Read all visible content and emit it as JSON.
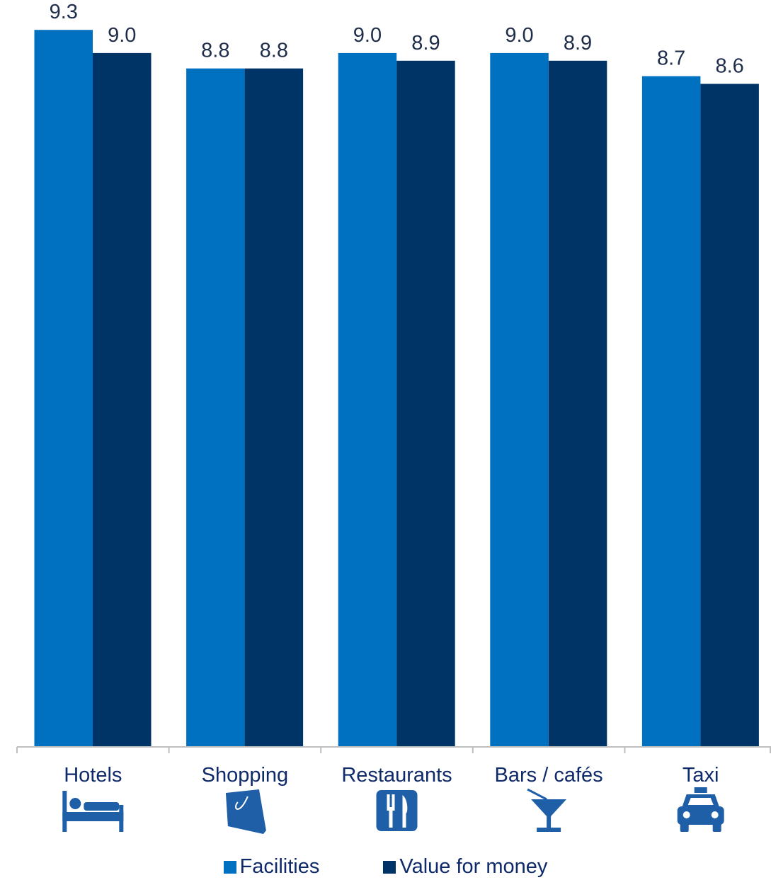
{
  "colors": {
    "facilities": "#0070c0",
    "value_for_money": "#003366",
    "icon": "#1f5fa8",
    "axis": "#bfbfbf"
  },
  "chart_data": {
    "type": "bar",
    "categories": [
      "Hotels",
      "Shopping",
      "Restaurants",
      "Bars / cafés",
      "Taxi"
    ],
    "category_icons": [
      "bed-icon",
      "shopping-bag-icon",
      "cutlery-icon",
      "cocktail-icon",
      "taxi-icon"
    ],
    "series": [
      {
        "name": "Facilities",
        "values": [
          9.3,
          8.8,
          9.0,
          9.0,
          8.7
        ]
      },
      {
        "name": "Value for money",
        "values": [
          9.0,
          8.8,
          8.9,
          8.9,
          8.6
        ]
      }
    ],
    "value_labels": [
      [
        "9.3",
        "8.8",
        "9.0",
        "9.0",
        "8.7"
      ],
      [
        "9.0",
        "8.8",
        "8.9",
        "8.9",
        "8.6"
      ]
    ],
    "ylim": [
      0,
      10
    ],
    "grid": false,
    "legend": "bottom"
  }
}
